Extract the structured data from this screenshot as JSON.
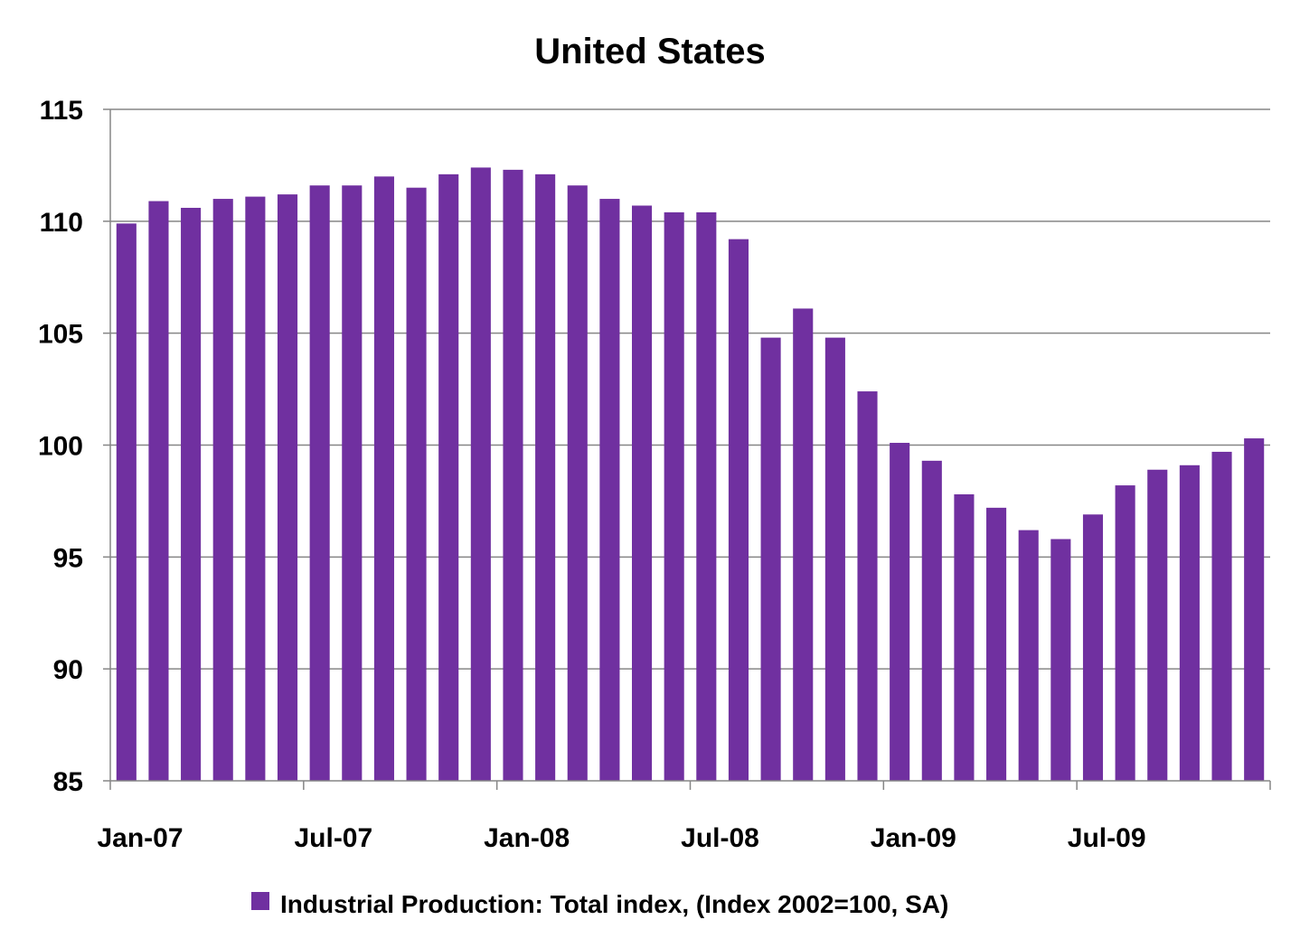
{
  "chart_data": {
    "type": "bar",
    "title": "United States",
    "xlabel": "",
    "ylabel": "",
    "ylim": [
      85,
      115
    ],
    "yticks": [
      "85",
      "90",
      "95",
      "100",
      "105",
      "110",
      "115"
    ],
    "grid": true,
    "legend_position": "bottom",
    "bar_color": "#7030A0",
    "categories": [
      "Jan-07",
      "Feb-07",
      "Mar-07",
      "Apr-07",
      "May-07",
      "Jun-07",
      "Jul-07",
      "Aug-07",
      "Sep-07",
      "Oct-07",
      "Nov-07",
      "Dec-07",
      "Jan-08",
      "Feb-08",
      "Mar-08",
      "Apr-08",
      "May-08",
      "Jun-08",
      "Jul-08",
      "Aug-08",
      "Sep-08",
      "Oct-08",
      "Nov-08",
      "Dec-08",
      "Jan-09",
      "Feb-09",
      "Mar-09",
      "Apr-09",
      "May-09",
      "Jun-09",
      "Jul-09",
      "Aug-09",
      "Sep-09",
      "Oct-09",
      "Nov-09",
      "Dec-09"
    ],
    "xtick_labels": [
      "Jan-07",
      "Jul-07",
      "Jan-08",
      "Jul-08",
      "Jan-09",
      "Jul-09"
    ],
    "series": [
      {
        "name": "Industrial Production: Total index, (Index 2002=100, SA)",
        "values": [
          109.9,
          110.9,
          110.6,
          111.0,
          111.1,
          111.2,
          111.6,
          111.6,
          112.0,
          111.5,
          112.1,
          112.4,
          112.3,
          112.1,
          111.6,
          111.0,
          110.7,
          110.4,
          110.4,
          109.2,
          104.8,
          106.1,
          104.8,
          102.4,
          100.1,
          99.3,
          97.8,
          97.2,
          96.2,
          95.8,
          96.9,
          98.2,
          98.9,
          99.1,
          99.7,
          100.3
        ]
      }
    ]
  }
}
